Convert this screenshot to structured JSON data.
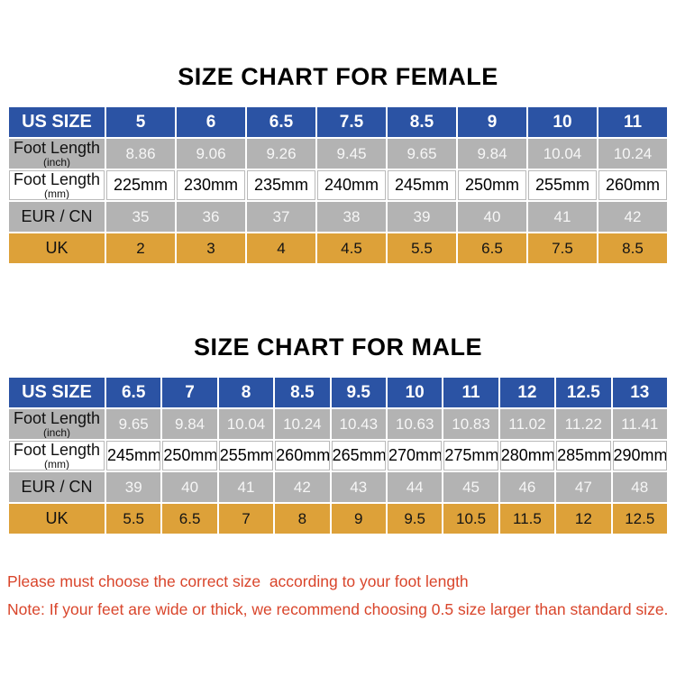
{
  "titles": {
    "female": "SIZE CHART FOR FEMALE",
    "male": "SIZE CHART FOR MALE"
  },
  "row_labels": {
    "us_size": "US SIZE",
    "foot_length": "Foot Length",
    "inch_sub": "(inch)",
    "mm_sub": "(mm)",
    "eur_cn": "EUR / CN",
    "uk": "UK"
  },
  "colors": {
    "header_blue": "#2b53a4",
    "row_gray": "#b3b3b3",
    "row_orange": "#dda139",
    "white_cell_border": "#b9b9b9",
    "note_red": "#d9452b",
    "title_black": "#000000"
  },
  "chart_data": [
    {
      "type": "table",
      "title": "SIZE CHART FOR FEMALE",
      "row_headers": [
        "US SIZE",
        "Foot Length (inch)",
        "Foot Length (mm)",
        "EUR / CN",
        "UK"
      ],
      "rows": {
        "us_size": [
          "5",
          "6",
          "6.5",
          "7.5",
          "8.5",
          "9",
          "10",
          "11"
        ],
        "foot_length_inch": [
          "8.86",
          "9.06",
          "9.26",
          "9.45",
          "9.65",
          "9.84",
          "10.04",
          "10.24"
        ],
        "foot_length_mm": [
          "225mm",
          "230mm",
          "235mm",
          "240mm",
          "245mm",
          "250mm",
          "255mm",
          "260mm"
        ],
        "eur_cn": [
          "35",
          "36",
          "37",
          "38",
          "39",
          "40",
          "41",
          "42"
        ],
        "uk": [
          "2",
          "3",
          "4",
          "4.5",
          "5.5",
          "6.5",
          "7.5",
          "8.5"
        ]
      }
    },
    {
      "type": "table",
      "title": "SIZE CHART FOR MALE",
      "row_headers": [
        "US SIZE",
        "Foot Length (inch)",
        "Foot Length (mm)",
        "EUR / CN",
        "UK"
      ],
      "rows": {
        "us_size": [
          "6.5",
          "7",
          "8",
          "8.5",
          "9.5",
          "10",
          "11",
          "12",
          "12.5",
          "13"
        ],
        "foot_length_inch": [
          "9.65",
          "9.84",
          "10.04",
          "10.24",
          "10.43",
          "10.63",
          "10.83",
          "11.02",
          "11.22",
          "11.41"
        ],
        "foot_length_mm": [
          "245mm",
          "250mm",
          "255mm",
          "260mm",
          "265mm",
          "270mm",
          "275mm",
          "280mm",
          "285mm",
          "290mm"
        ],
        "eur_cn": [
          "39",
          "40",
          "41",
          "42",
          "43",
          "44",
          "45",
          "46",
          "47",
          "48"
        ],
        "uk": [
          "5.5",
          "6.5",
          "7",
          "8",
          "9",
          "9.5",
          "10.5",
          "11.5",
          "12",
          "12.5"
        ]
      }
    }
  ],
  "notes": {
    "line1": "Please must choose the correct size  according to your foot length",
    "line2": "Note: If your feet are wide or thick, we recommend choosing 0.5 size larger than standard size."
  }
}
